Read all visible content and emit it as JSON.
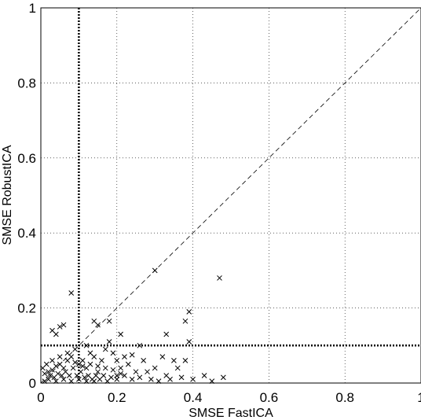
{
  "chart_data": {
    "type": "scatter",
    "title": "",
    "xlabel": "SMSE FastICA",
    "ylabel": "SMSE RobustICA",
    "xlim": [
      0,
      1
    ],
    "ylim": [
      0,
      1
    ],
    "xticks": [
      "0",
      "0.2",
      "0.4",
      "0.6",
      "0.8",
      "1"
    ],
    "yticks": [
      "0",
      "0.2",
      "0.4",
      "0.6",
      "0.8",
      "1"
    ],
    "xtick_values": [
      0,
      0.2,
      0.4,
      0.6,
      0.8,
      1
    ],
    "ytick_values": [
      0,
      0.2,
      0.4,
      0.6,
      0.8,
      1
    ],
    "grid": true,
    "marker": "x",
    "reference_lines": {
      "diagonal": "y = x (dashed)",
      "vertical_threshold_x": 0.1,
      "horizontal_threshold_y": 0.1
    },
    "series": [
      {
        "values": [
          [
            0.47,
            0.28
          ],
          [
            0.3,
            0.3
          ],
          [
            0.08,
            0.24
          ],
          [
            0.39,
            0.19
          ],
          [
            0.38,
            0.165
          ],
          [
            0.14,
            0.165
          ],
          [
            0.03,
            0.14
          ],
          [
            0.04,
            0.13
          ],
          [
            0.05,
            0.15
          ],
          [
            0.06,
            0.155
          ],
          [
            0.15,
            0.155
          ],
          [
            0.18,
            0.165
          ],
          [
            0.21,
            0.13
          ],
          [
            0.33,
            0.13
          ],
          [
            0.39,
            0.11
          ],
          [
            0.26,
            0.1
          ],
          [
            0.18,
            0.11
          ],
          [
            0.12,
            0.1
          ],
          [
            0.13,
            0.08
          ],
          [
            0.14,
            0.07
          ],
          [
            0.16,
            0.06
          ],
          [
            0.17,
            0.09
          ],
          [
            0.19,
            0.08
          ],
          [
            0.22,
            0.07
          ],
          [
            0.24,
            0.075
          ],
          [
            0.27,
            0.06
          ],
          [
            0.32,
            0.07
          ],
          [
            0.35,
            0.06
          ],
          [
            0.36,
            0.04
          ],
          [
            0.3,
            0.04
          ],
          [
            0.28,
            0.03
          ],
          [
            0.25,
            0.03
          ],
          [
            0.23,
            0.05
          ],
          [
            0.21,
            0.04
          ],
          [
            0.2,
            0.02
          ],
          [
            0.33,
            0.02
          ],
          [
            0.37,
            0.015
          ],
          [
            0.4,
            0.01
          ],
          [
            0.43,
            0.02
          ],
          [
            0.45,
            0.005
          ],
          [
            0.48,
            0.015
          ],
          [
            0.38,
            0.06
          ],
          [
            0.2,
            0.06
          ],
          [
            0.11,
            0.06
          ],
          [
            0.09,
            0.09
          ],
          [
            0.08,
            0.07
          ],
          [
            0.07,
            0.06
          ],
          [
            0.1,
            0.05
          ],
          [
            0.12,
            0.04
          ],
          [
            0.15,
            0.03
          ],
          [
            0.06,
            0.04
          ],
          [
            0.05,
            0.05
          ],
          [
            0.04,
            0.045
          ],
          [
            0.03,
            0.035
          ],
          [
            0.02,
            0.03
          ],
          [
            0.01,
            0.025
          ],
          [
            0.005,
            0.04
          ],
          [
            0.015,
            0.05
          ],
          [
            0.025,
            0.02
          ],
          [
            0.035,
            0.015
          ],
          [
            0.045,
            0.025
          ],
          [
            0.055,
            0.02
          ],
          [
            0.065,
            0.03
          ],
          [
            0.075,
            0.02
          ],
          [
            0.085,
            0.04
          ],
          [
            0.095,
            0.02
          ],
          [
            0.105,
            0.03
          ],
          [
            0.115,
            0.015
          ],
          [
            0.125,
            0.02
          ],
          [
            0.135,
            0.01
          ],
          [
            0.145,
            0.02
          ],
          [
            0.155,
            0.01
          ],
          [
            0.165,
            0.02
          ],
          [
            0.175,
            0.005
          ],
          [
            0.185,
            0.015
          ],
          [
            0.2,
            0.01
          ],
          [
            0.22,
            0.02
          ],
          [
            0.24,
            0.01
          ],
          [
            0.26,
            0.015
          ],
          [
            0.29,
            0.01
          ],
          [
            0.31,
            0.005
          ],
          [
            0.34,
            0.01
          ],
          [
            0.02,
            0.01
          ],
          [
            0.04,
            0.005
          ],
          [
            0.06,
            0.01
          ],
          [
            0.08,
            0.005
          ],
          [
            0.1,
            0.01
          ],
          [
            0.12,
            0.005
          ],
          [
            0.14,
            0.005
          ],
          [
            0.01,
            0.005
          ],
          [
            0.03,
            0.06
          ],
          [
            0.05,
            0.07
          ],
          [
            0.07,
            0.08
          ],
          [
            0.09,
            0.055
          ],
          [
            0.11,
            0.045
          ],
          [
            0.13,
            0.05
          ],
          [
            0.15,
            0.045
          ],
          [
            0.17,
            0.04
          ],
          [
            0.19,
            0.035
          ],
          [
            0.21,
            0.025
          ]
        ]
      }
    ]
  }
}
